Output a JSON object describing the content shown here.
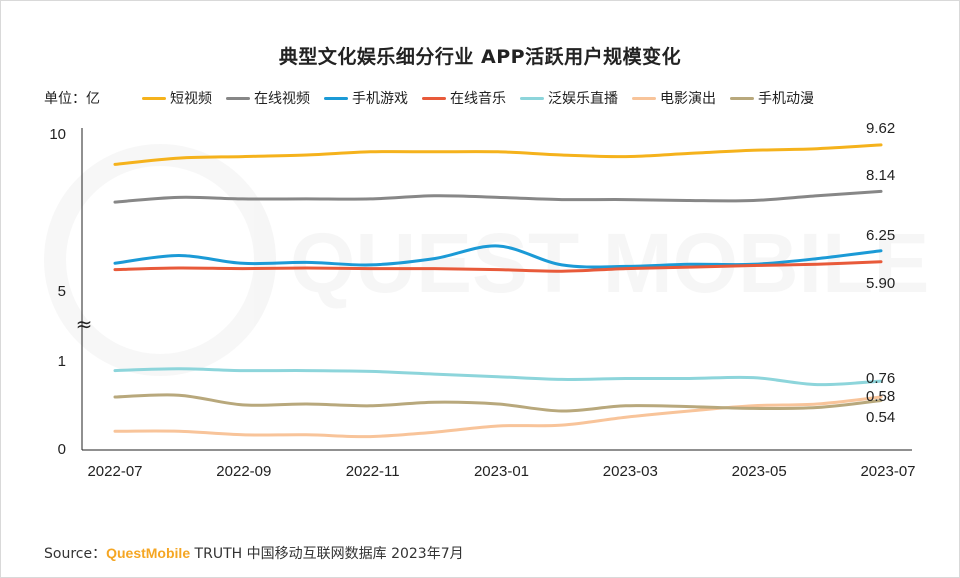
{
  "title": "典型文化娱乐细分行业 APP活跃用户规模变化",
  "unit_label": "单位：亿",
  "source": {
    "prefix": "Source：",
    "brand": "QuestMobile",
    "rest": " TRUTH 中国移动互联网数据库 2023年7月"
  },
  "watermark": "QUEST MOBILE",
  "chart_data": {
    "type": "line",
    "title": "典型文化娱乐细分行业 APP活跃用户规模变化",
    "unit": "亿",
    "axis_break": "≈",
    "y_ticks": [
      "10",
      "5",
      "1",
      "0"
    ],
    "x": [
      "2022-07",
      "2022-08",
      "2022-09",
      "2022-10",
      "2022-11",
      "2022-12",
      "2023-01",
      "2023-02",
      "2023-03",
      "2023-04",
      "2023-05",
      "2023-06",
      "2023-07"
    ],
    "x_tick_labels": [
      "2022-07",
      "2022-09",
      "2022-11",
      "2023-01",
      "2023-03",
      "2023-05",
      "2023-07"
    ],
    "segments": {
      "upper": {
        "ylim": [
          5,
          10
        ]
      },
      "lower": {
        "ylim": [
          0,
          1
        ]
      }
    },
    "series": [
      {
        "name": "短视频",
        "color": "#f5b21c",
        "segment": "upper",
        "end_label": "9.62",
        "values": [
          9.0,
          9.2,
          9.25,
          9.3,
          9.4,
          9.4,
          9.4,
          9.3,
          9.25,
          9.35,
          9.45,
          9.5,
          9.62
        ]
      },
      {
        "name": "在线视频",
        "color": "#878787",
        "segment": "upper",
        "end_label": "8.14",
        "values": [
          7.8,
          7.95,
          7.9,
          7.9,
          7.9,
          8.0,
          7.95,
          7.88,
          7.88,
          7.85,
          7.85,
          8.0,
          8.14
        ]
      },
      {
        "name": "手机游戏",
        "color": "#1b9ad6",
        "segment": "upper",
        "end_label": "6.25",
        "values": [
          5.85,
          6.1,
          5.85,
          5.88,
          5.8,
          6.0,
          6.4,
          5.8,
          5.75,
          5.82,
          5.82,
          6.0,
          6.25
        ]
      },
      {
        "name": "在线音乐",
        "color": "#e85a3a",
        "segment": "upper",
        "end_label": "5.90",
        "values": [
          5.65,
          5.7,
          5.68,
          5.7,
          5.68,
          5.68,
          5.65,
          5.6,
          5.68,
          5.73,
          5.78,
          5.82,
          5.9
        ]
      },
      {
        "name": "泛娱乐直播",
        "color": "#8dd5db",
        "segment": "lower",
        "end_label": "0.76",
        "values": [
          0.88,
          0.9,
          0.88,
          0.88,
          0.87,
          0.84,
          0.81,
          0.78,
          0.79,
          0.79,
          0.8,
          0.72,
          0.76
        ]
      },
      {
        "name": "电影演出",
        "color": "#f8c49a",
        "segment": "lower",
        "end_label": "0.58",
        "values": [
          0.19,
          0.19,
          0.15,
          0.15,
          0.13,
          0.18,
          0.25,
          0.26,
          0.35,
          0.42,
          0.48,
          0.5,
          0.58
        ]
      },
      {
        "name": "手机动漫",
        "color": "#b8a87c",
        "segment": "lower",
        "end_label": "0.54",
        "values": [
          0.58,
          0.6,
          0.49,
          0.5,
          0.48,
          0.52,
          0.5,
          0.42,
          0.48,
          0.47,
          0.45,
          0.46,
          0.54
        ]
      }
    ]
  }
}
